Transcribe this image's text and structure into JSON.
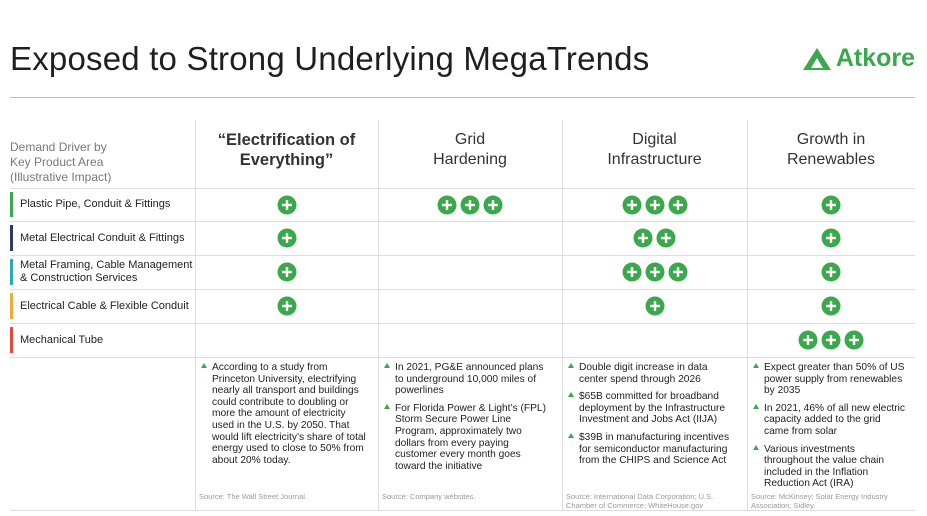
{
  "title": "Exposed to Strong Underlying MegaTrends",
  "logo": "Atkore",
  "row_header": [
    "Demand Driver by",
    "Key Product Area",
    "(Illustrative Impact)"
  ],
  "columns": [
    {
      "lines": [
        "“Electrification of",
        "Everything”"
      ],
      "bold": true
    },
    {
      "lines": [
        "Grid",
        "Hardening"
      ],
      "bold": false
    },
    {
      "lines": [
        "Digital",
        "Infrastructure"
      ],
      "bold": false
    },
    {
      "lines": [
        "Growth in",
        "Renewables"
      ],
      "bold": false
    }
  ],
  "rows": [
    {
      "label": "Plastic Pipe, Conduit & Fittings",
      "color": "#3aa84b",
      "impact": [
        1,
        3,
        3,
        1
      ]
    },
    {
      "label": "Metal Electrical Conduit & Fittings",
      "color": "#2b3a67",
      "impact": [
        1,
        0,
        2,
        1
      ]
    },
    {
      "label": "Metal Framing, Cable Management & Construction Services",
      "color": "#29a9c1",
      "impact": [
        1,
        0,
        3,
        1
      ]
    },
    {
      "label": "Electrical Cable & Flexible Conduit",
      "color": "#f0a93a",
      "impact": [
        1,
        0,
        1,
        1
      ]
    },
    {
      "label": "Mechanical Tube",
      "color": "#e04b3a",
      "impact": [
        0,
        0,
        0,
        3
      ]
    }
  ],
  "notes": [
    {
      "bullets": [
        "According to a study from Princeton University, electrifying nearly all transport and buildings could contribute to doubling or more the amount of electricity used in the U.S. by 2050. That would lift electricity’s share of total energy used to close to 50% from about 20% today."
      ],
      "source": "Source: The Wall Street Journal."
    },
    {
      "bullets": [
        "In 2021, PG&E announced plans to underground 10,000 miles of powerlines",
        "For Florida Power & Light’s (FPL) Storm Secure Power Line Program, approximately two dollars from every paying customer every month goes toward the initiative"
      ],
      "source": "Source: Company websites."
    },
    {
      "bullets": [
        "Double digit increase in data center spend through 2026",
        "$65B committed for broadband deployment by the Infrastructure Investment and Jobs Act (IIJA)",
        "$39B in manufacturing incentives for semiconductor manufacturing from the CHIPS and Science Act"
      ],
      "source": "Source: International Data Corporation; U.S. Chamber of Commerce; WhiteHouse.gov"
    },
    {
      "bullets": [
        "Expect greater than 50% of US power supply from renewables by 2035",
        "In 2021, 46% of all new electric capacity added to the grid came from solar",
        "Various investments throughout the value chain included in the Inflation Reduction Act (IRA)"
      ],
      "source": "Source: McKinsey; Solar Energy Industry Association; Sidley."
    }
  ]
}
